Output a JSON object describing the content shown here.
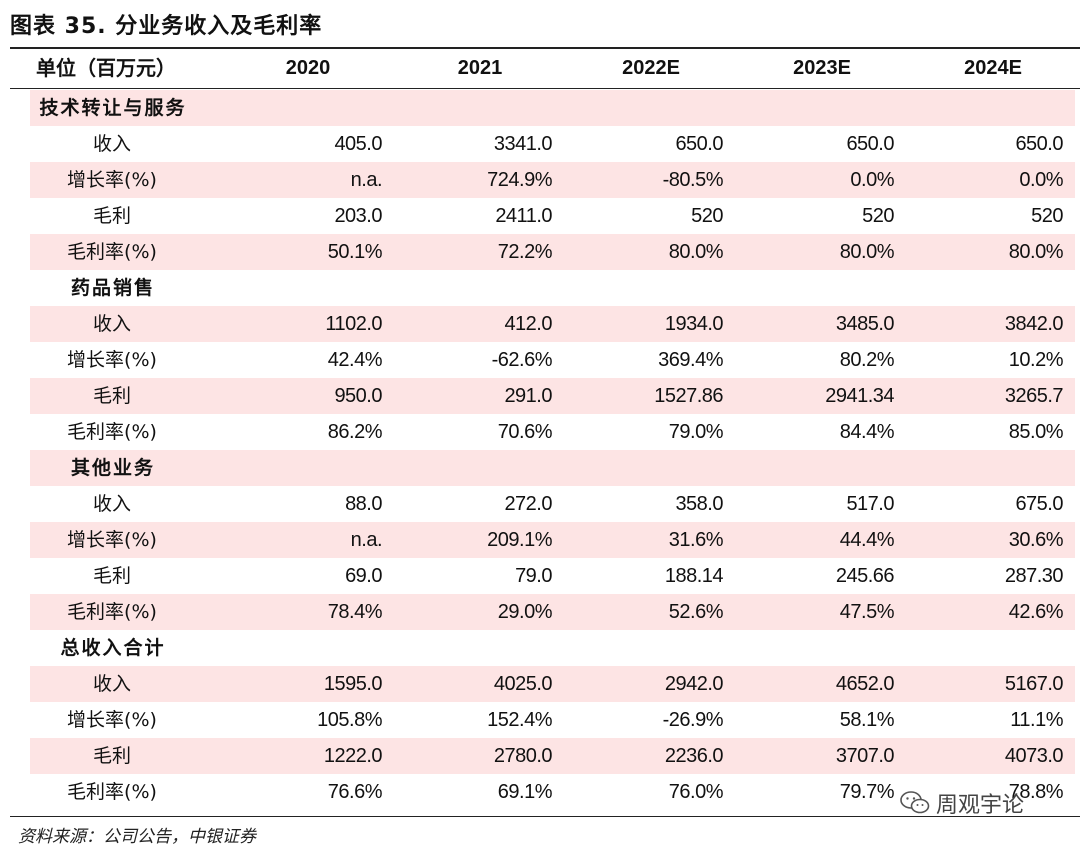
{
  "title": "图表 35. 分业务收入及毛利率",
  "header": {
    "unit_label": "单位（百万元）",
    "years": [
      "2020",
      "2021",
      "2022E",
      "2023E",
      "2024E"
    ]
  },
  "rows": [
    {
      "type": "section",
      "label": "技术转让与服务",
      "shade": true,
      "values": []
    },
    {
      "type": "data",
      "label": "收入",
      "shade": false,
      "values": [
        "405.0",
        "3341.0",
        "650.0",
        "650.0",
        "650.0"
      ]
    },
    {
      "type": "data",
      "label": "增长率(%)",
      "shade": true,
      "values": [
        "n.a.",
        "724.9%",
        "-80.5%",
        "0.0%",
        "0.0%"
      ]
    },
    {
      "type": "data",
      "label": "毛利",
      "shade": false,
      "values": [
        "203.0",
        "2411.0",
        "520",
        "520",
        "520"
      ]
    },
    {
      "type": "data",
      "label": "毛利率(%)",
      "shade": true,
      "values": [
        "50.1%",
        "72.2%",
        "80.0%",
        "80.0%",
        "80.0%"
      ]
    },
    {
      "type": "section",
      "label": "药品销售",
      "shade": false,
      "values": []
    },
    {
      "type": "data",
      "label": "收入",
      "shade": true,
      "values": [
        "1102.0",
        "412.0",
        "1934.0",
        "3485.0",
        "3842.0"
      ]
    },
    {
      "type": "data",
      "label": "增长率(%)",
      "shade": false,
      "values": [
        "42.4%",
        "-62.6%",
        "369.4%",
        "80.2%",
        "10.2%"
      ]
    },
    {
      "type": "data",
      "label": "毛利",
      "shade": true,
      "values": [
        "950.0",
        "291.0",
        "1527.86",
        "2941.34",
        "3265.7"
      ]
    },
    {
      "type": "data",
      "label": "毛利率(%)",
      "shade": false,
      "values": [
        "86.2%",
        "70.6%",
        "79.0%",
        "84.4%",
        "85.0%"
      ]
    },
    {
      "type": "section",
      "label": "其他业务",
      "shade": true,
      "values": []
    },
    {
      "type": "data",
      "label": "收入",
      "shade": false,
      "values": [
        "88.0",
        "272.0",
        "358.0",
        "517.0",
        "675.0"
      ]
    },
    {
      "type": "data",
      "label": "增长率(%)",
      "shade": true,
      "values": [
        "n.a.",
        "209.1%",
        "31.6%",
        "44.4%",
        "30.6%"
      ]
    },
    {
      "type": "data",
      "label": "毛利",
      "shade": false,
      "values": [
        "69.0",
        "79.0",
        "188.14",
        "245.66",
        "287.30"
      ]
    },
    {
      "type": "data",
      "label": "毛利率(%)",
      "shade": true,
      "values": [
        "78.4%",
        "29.0%",
        "52.6%",
        "47.5%",
        "42.6%"
      ]
    },
    {
      "type": "section",
      "label": "总收入合计",
      "shade": false,
      "values": []
    },
    {
      "type": "data",
      "label": "收入",
      "shade": true,
      "values": [
        "1595.0",
        "4025.0",
        "2942.0",
        "4652.0",
        "5167.0"
      ]
    },
    {
      "type": "data",
      "label": "增长率(%)",
      "shade": false,
      "values": [
        "105.8%",
        "152.4%",
        "-26.9%",
        "58.1%",
        "11.1%"
      ]
    },
    {
      "type": "data",
      "label": "毛利",
      "shade": true,
      "values": [
        "1222.0",
        "2780.0",
        "2236.0",
        "3707.0",
        "4073.0"
      ]
    },
    {
      "type": "data",
      "label": "毛利率(%)",
      "shade": false,
      "values": [
        "76.6%",
        "69.1%",
        "76.0%",
        "79.7%",
        "78.8%"
      ]
    }
  ],
  "source": "资料来源：公司公告，中银证券",
  "watermark": {
    "text": "周观宇论",
    "icon": "wechat-icon"
  },
  "colors": {
    "row_shade": "#fde4e4",
    "rule": "#222222"
  }
}
